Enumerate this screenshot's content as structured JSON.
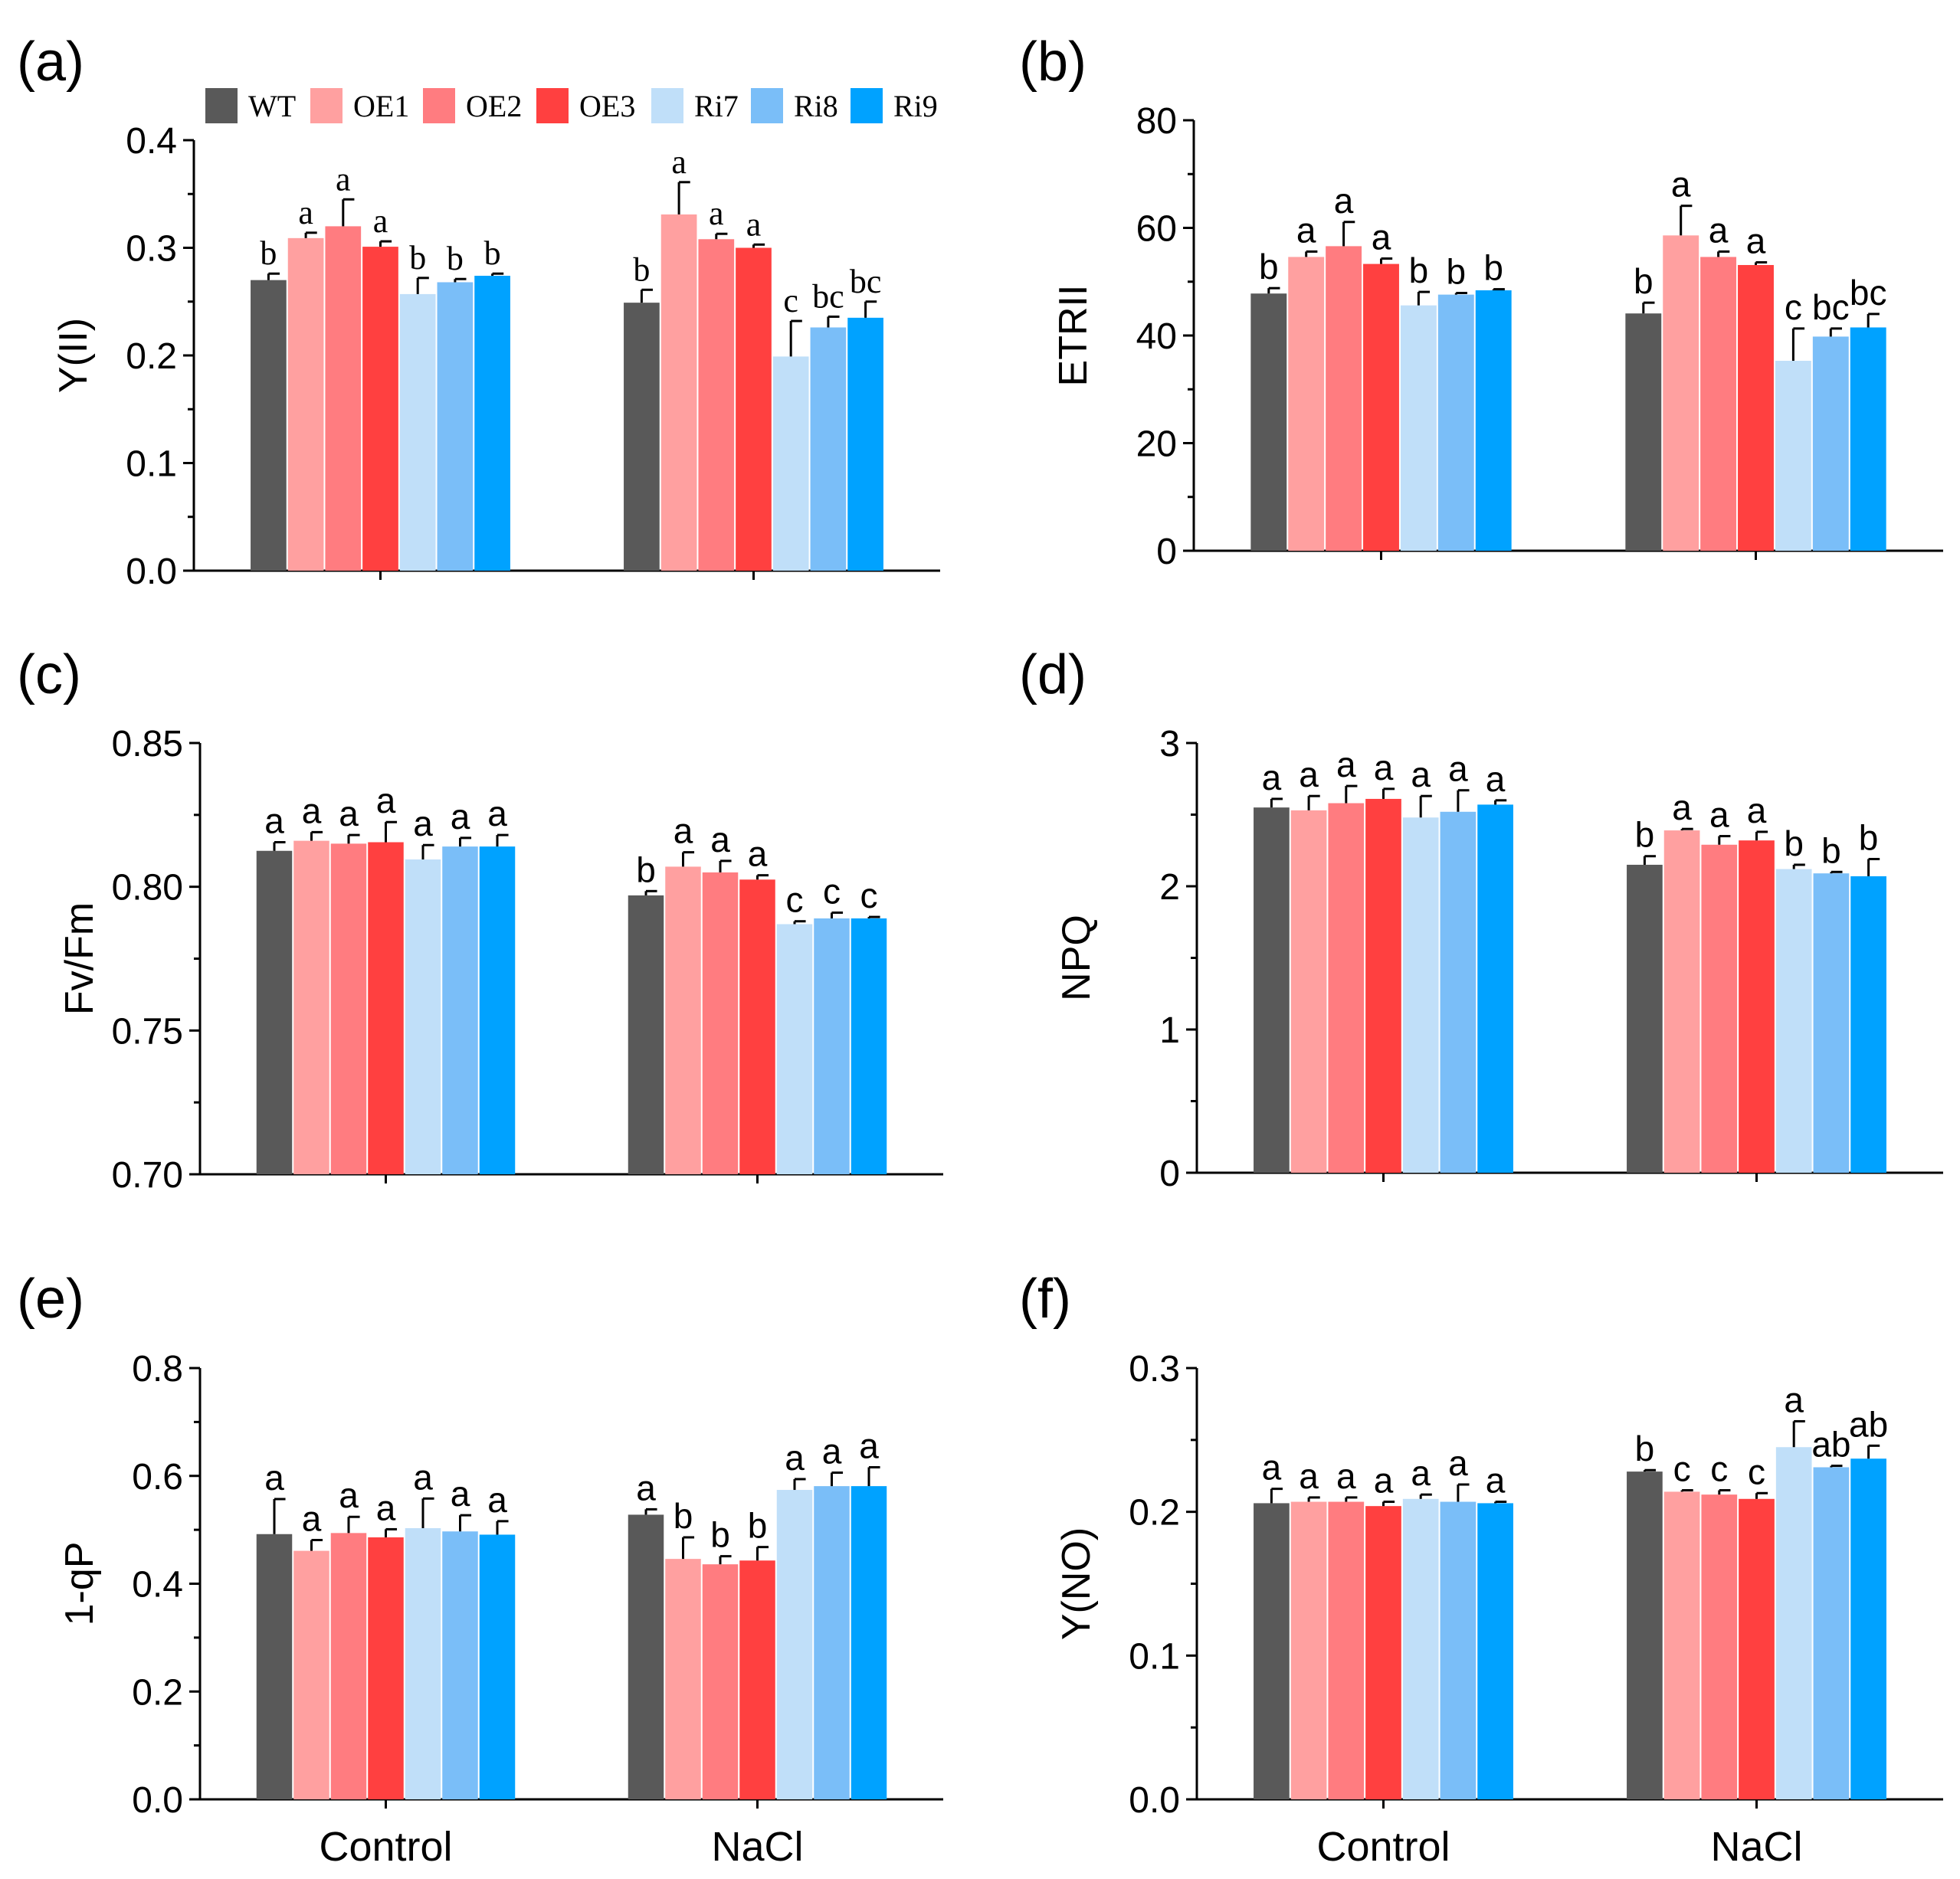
{
  "legend": {
    "series": [
      "WT",
      "OE1",
      "OE2",
      "OE3",
      "Ri7",
      "Ri8",
      "Ri9"
    ],
    "colors": [
      "#595959",
      "#FFA0A0",
      "#FF7C80",
      "#FF4040",
      "#C0DFF9",
      "#7ABEF8",
      "#00A2FF"
    ]
  },
  "chart_data": [
    {
      "panel": "(a)",
      "type": "bar",
      "ylabel": "Y(II)",
      "ylim": [
        0,
        0.4
      ],
      "yticks": [
        "0.0",
        "0.1",
        "0.2",
        "0.3",
        "0.4"
      ],
      "categories": [
        "Control",
        "NaCl"
      ],
      "show_xlabels": false,
      "series": [
        {
          "name": "WT",
          "values": [
            0.27,
            0.249
          ],
          "errors": [
            0.006,
            0.012
          ],
          "letters": [
            "b",
            "b"
          ]
        },
        {
          "name": "OE1",
          "values": [
            0.309,
            0.331
          ],
          "errors": [
            0.005,
            0.03
          ],
          "letters": [
            "a",
            "a"
          ]
        },
        {
          "name": "OE2",
          "values": [
            0.32,
            0.308
          ],
          "errors": [
            0.025,
            0.005
          ],
          "letters": [
            "a",
            "a"
          ]
        },
        {
          "name": "OE3",
          "values": [
            0.301,
            0.3
          ],
          "errors": [
            0.005,
            0.003
          ],
          "letters": [
            "a",
            "a"
          ]
        },
        {
          "name": "Ri7",
          "values": [
            0.257,
            0.199
          ],
          "errors": [
            0.015,
            0.033
          ],
          "letters": [
            "b",
            "c"
          ]
        },
        {
          "name": "Ri8",
          "values": [
            0.268,
            0.226
          ],
          "errors": [
            0.003,
            0.01
          ],
          "letters": [
            "b",
            "bc"
          ]
        },
        {
          "name": "Ri9",
          "values": [
            0.274,
            0.235
          ],
          "errors": [
            0.002,
            0.015
          ],
          "letters": [
            "b",
            "bc"
          ]
        }
      ]
    },
    {
      "panel": "(b)",
      "type": "bar",
      "ylabel": "ETRII",
      "ylim": [
        0,
        80
      ],
      "yticks": [
        "0",
        "20",
        "40",
        "60",
        "80"
      ],
      "categories": [
        "Control",
        "NaCl"
      ],
      "show_xlabels": false,
      "series": [
        {
          "name": "WT",
          "values": [
            47.8,
            44.1
          ],
          "errors": [
            1.0,
            2.0
          ],
          "letters": [
            "b",
            "b"
          ]
        },
        {
          "name": "OE1",
          "values": [
            54.6,
            58.6
          ],
          "errors": [
            1.0,
            5.5
          ],
          "letters": [
            "a",
            "a"
          ]
        },
        {
          "name": "OE2",
          "values": [
            56.6,
            54.6
          ],
          "errors": [
            4.5,
            1.0
          ],
          "letters": [
            "a",
            "a"
          ]
        },
        {
          "name": "OE3",
          "values": [
            53.3,
            53.1
          ],
          "errors": [
            1.0,
            0.5
          ],
          "letters": [
            "a",
            "a"
          ]
        },
        {
          "name": "Ri7",
          "values": [
            45.6,
            35.3
          ],
          "errors": [
            2.5,
            6.0
          ],
          "letters": [
            "b",
            "c"
          ]
        },
        {
          "name": "Ri8",
          "values": [
            47.6,
            39.8
          ],
          "errors": [
            0.3,
            1.5
          ],
          "letters": [
            "b",
            "bc"
          ]
        },
        {
          "name": "Ri9",
          "values": [
            48.4,
            41.5
          ],
          "errors": [
            0.2,
            2.5
          ],
          "letters": [
            "b",
            "bc"
          ]
        }
      ]
    },
    {
      "panel": "(c)",
      "type": "bar",
      "ylabel": "Fv/Fm",
      "ylim": [
        0.7,
        0.85
      ],
      "yticks": [
        "0.70",
        "0.75",
        "0.80",
        "0.85"
      ],
      "categories": [
        "Control",
        "NaCl"
      ],
      "show_xlabels": false,
      "series": [
        {
          "name": "WT",
          "values": [
            0.8125,
            0.797
          ],
          "errors": [
            0.003,
            0.0015
          ],
          "letters": [
            "a",
            "b"
          ]
        },
        {
          "name": "OE1",
          "values": [
            0.816,
            0.807
          ],
          "errors": [
            0.003,
            0.005
          ],
          "letters": [
            "a",
            "a"
          ]
        },
        {
          "name": "OE2",
          "values": [
            0.815,
            0.805
          ],
          "errors": [
            0.003,
            0.004
          ],
          "letters": [
            "a",
            "a"
          ]
        },
        {
          "name": "OE3",
          "values": [
            0.8155,
            0.8025
          ],
          "errors": [
            0.007,
            0.0015
          ],
          "letters": [
            "a",
            "a"
          ]
        },
        {
          "name": "Ri7",
          "values": [
            0.8095,
            0.787
          ],
          "errors": [
            0.005,
            0.001
          ],
          "letters": [
            "a",
            "c"
          ]
        },
        {
          "name": "Ri8",
          "values": [
            0.814,
            0.789
          ],
          "errors": [
            0.003,
            0.002
          ],
          "letters": [
            "a",
            "c"
          ]
        },
        {
          "name": "Ri9",
          "values": [
            0.814,
            0.789
          ],
          "errors": [
            0.004,
            0.0005
          ],
          "letters": [
            "a",
            "c"
          ]
        }
      ]
    },
    {
      "panel": "(d)",
      "type": "bar",
      "ylabel": "NPQ",
      "ylim": [
        0,
        3
      ],
      "yticks": [
        "0",
        "1",
        "2",
        "3"
      ],
      "categories": [
        "Control",
        "NaCl"
      ],
      "show_xlabels": false,
      "series": [
        {
          "name": "WT",
          "values": [
            2.55,
            2.15
          ],
          "errors": [
            0.06,
            0.06
          ],
          "letters": [
            "a",
            "b"
          ]
        },
        {
          "name": "OE1",
          "values": [
            2.53,
            2.39
          ],
          "errors": [
            0.1,
            0.01
          ],
          "letters": [
            "a",
            "a"
          ]
        },
        {
          "name": "OE2",
          "values": [
            2.58,
            2.29
          ],
          "errors": [
            0.12,
            0.06
          ],
          "letters": [
            "a",
            "a"
          ]
        },
        {
          "name": "OE3",
          "values": [
            2.61,
            2.32
          ],
          "errors": [
            0.07,
            0.06
          ],
          "letters": [
            "a",
            "a"
          ]
        },
        {
          "name": "Ri7",
          "values": [
            2.48,
            2.12
          ],
          "errors": [
            0.15,
            0.03
          ],
          "letters": [
            "a",
            "b"
          ]
        },
        {
          "name": "Ri8",
          "values": [
            2.52,
            2.09
          ],
          "errors": [
            0.15,
            0.01
          ],
          "letters": [
            "a",
            "b"
          ]
        },
        {
          "name": "Ri9",
          "values": [
            2.57,
            2.07
          ],
          "errors": [
            0.03,
            0.12
          ],
          "letters": [
            "a",
            "b"
          ]
        }
      ]
    },
    {
      "panel": "(e)",
      "type": "bar",
      "ylabel": "1-qP",
      "ylim": [
        0,
        0.8
      ],
      "yticks": [
        "0.0",
        "0.2",
        "0.4",
        "0.6",
        "0.8"
      ],
      "categories": [
        "Control",
        "NaCl"
      ],
      "show_xlabels": true,
      "series": [
        {
          "name": "WT",
          "values": [
            0.492,
            0.528
          ],
          "errors": [
            0.065,
            0.01
          ],
          "letters": [
            "a",
            "a"
          ]
        },
        {
          "name": "OE1",
          "values": [
            0.461,
            0.446
          ],
          "errors": [
            0.02,
            0.04
          ],
          "letters": [
            "a",
            "b"
          ]
        },
        {
          "name": "OE2",
          "values": [
            0.494,
            0.436
          ],
          "errors": [
            0.03,
            0.015
          ],
          "letters": [
            "a",
            "b"
          ]
        },
        {
          "name": "OE3",
          "values": [
            0.486,
            0.443
          ],
          "errors": [
            0.015,
            0.025
          ],
          "letters": [
            "a",
            "b"
          ]
        },
        {
          "name": "Ri7",
          "values": [
            0.503,
            0.574
          ],
          "errors": [
            0.055,
            0.02
          ],
          "letters": [
            "a",
            "a"
          ]
        },
        {
          "name": "Ri8",
          "values": [
            0.497,
            0.581
          ],
          "errors": [
            0.03,
            0.025
          ],
          "letters": [
            "a",
            "a"
          ]
        },
        {
          "name": "Ri9",
          "values": [
            0.491,
            0.581
          ],
          "errors": [
            0.025,
            0.035
          ],
          "letters": [
            "a",
            "a"
          ]
        }
      ]
    },
    {
      "panel": "(f)",
      "type": "bar",
      "ylabel": "Y(NO)",
      "ylim": [
        0,
        0.3
      ],
      "yticks": [
        "0.0",
        "0.1",
        "0.2",
        "0.3"
      ],
      "categories": [
        "Control",
        "NaCl"
      ],
      "show_xlabels": true,
      "series": [
        {
          "name": "WT",
          "values": [
            0.206,
            0.228
          ],
          "errors": [
            0.01,
            0.001
          ],
          "letters": [
            "a",
            "b"
          ]
        },
        {
          "name": "OE1",
          "values": [
            0.207,
            0.214
          ],
          "errors": [
            0.003,
            0.001
          ],
          "letters": [
            "a",
            "c"
          ]
        },
        {
          "name": "OE2",
          "values": [
            0.207,
            0.212
          ],
          "errors": [
            0.003,
            0.003
          ],
          "letters": [
            "a",
            "c"
          ]
        },
        {
          "name": "OE3",
          "values": [
            0.204,
            0.209
          ],
          "errors": [
            0.003,
            0.004
          ],
          "letters": [
            "a",
            "c"
          ]
        },
        {
          "name": "Ri7",
          "values": [
            0.209,
            0.245
          ],
          "errors": [
            0.003,
            0.018
          ],
          "letters": [
            "a",
            "a"
          ]
        },
        {
          "name": "Ri8",
          "values": [
            0.207,
            0.231
          ],
          "errors": [
            0.012,
            0.001
          ],
          "letters": [
            "a",
            "ab"
          ]
        },
        {
          "name": "Ri9",
          "values": [
            0.206,
            0.237
          ],
          "errors": [
            0.001,
            0.009
          ],
          "letters": [
            "a",
            "ab"
          ]
        }
      ]
    }
  ]
}
